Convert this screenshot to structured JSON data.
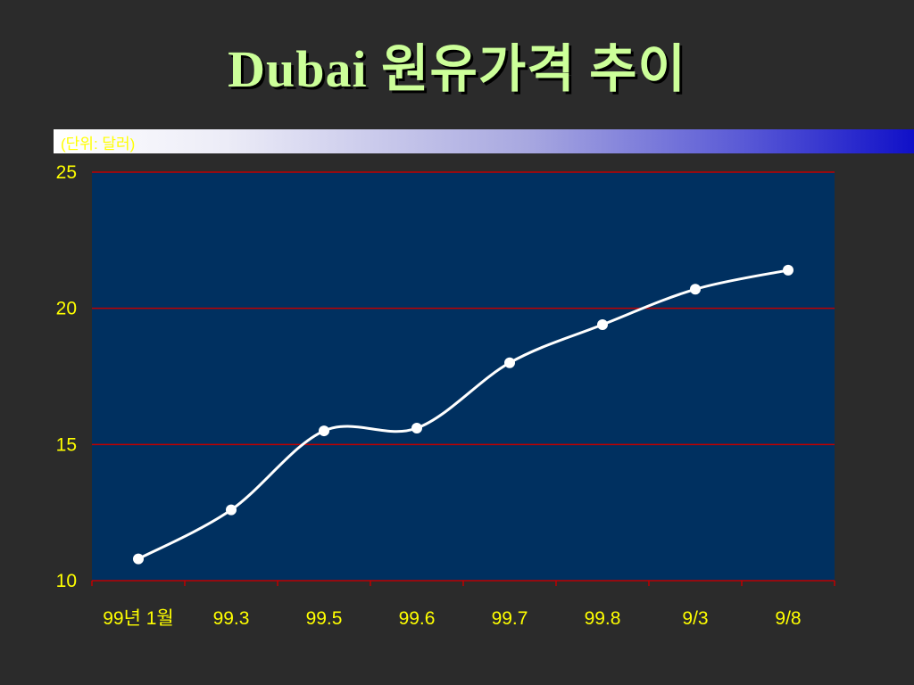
{
  "title": "Dubai 원유가격 추이",
  "unit_label": "(단위: 달러)",
  "colors": {
    "background": "#2b2b2b",
    "plot_area": "#003060",
    "grid": "#c00000",
    "line": "#ffffff",
    "tick_text": "#ffff00",
    "title_text": "#ccff99"
  },
  "chart_data": {
    "type": "line",
    "title": "Dubai 원유가격 추이",
    "xlabel": "",
    "ylabel": "(단위: 달러)",
    "ylim": [
      10,
      25
    ],
    "yticks": [
      10,
      15,
      20,
      25
    ],
    "grid": true,
    "categories": [
      "99년 1월",
      "99.3",
      "99.5",
      "99.6",
      "99.7",
      "99.8",
      "9/3",
      "9/8"
    ],
    "series": [
      {
        "values": [
          10.8,
          12.6,
          15.5,
          15.6,
          18.0,
          19.4,
          20.7,
          21.4
        ]
      }
    ]
  }
}
